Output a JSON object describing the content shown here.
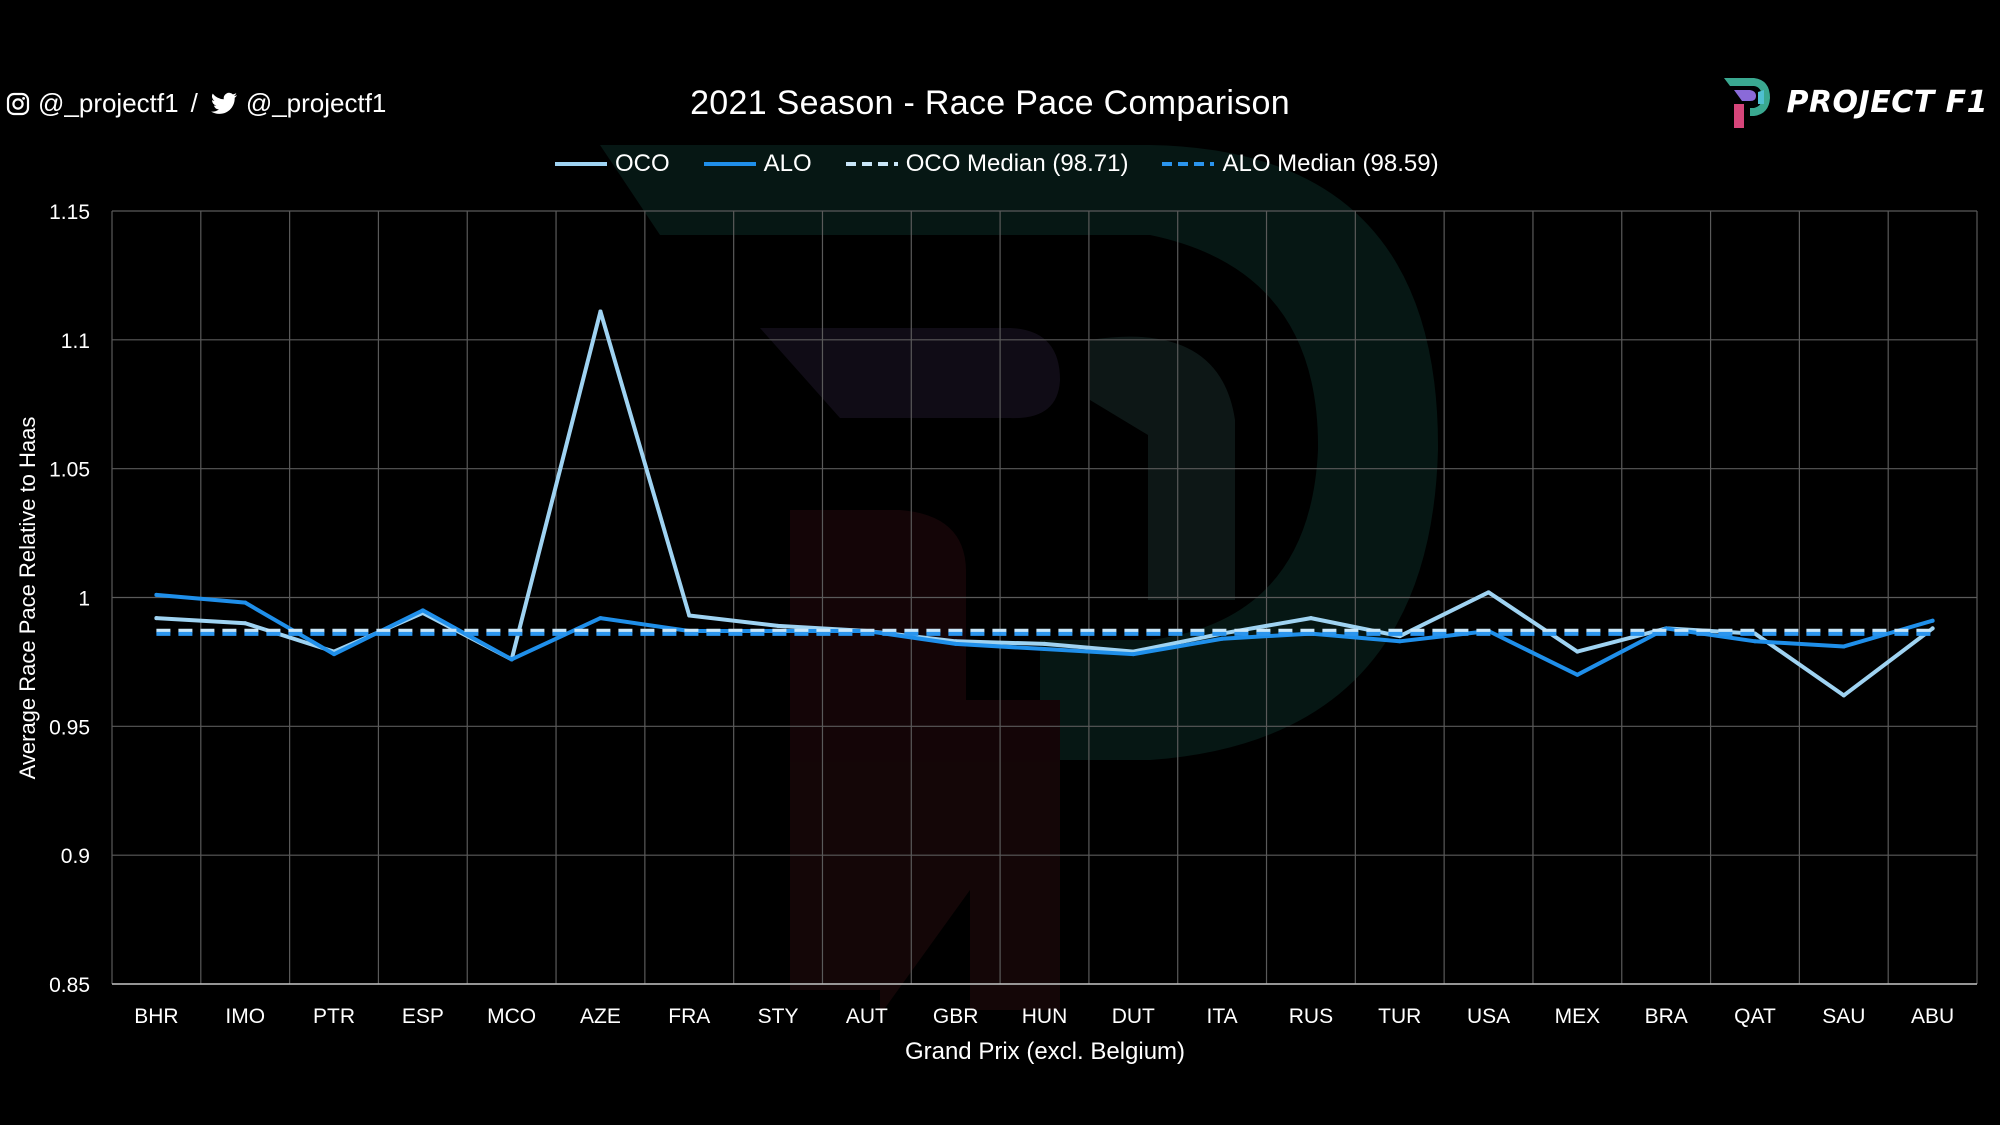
{
  "header": {
    "social": {
      "instagram_handle": "@_projectf1",
      "separator": "/",
      "twitter_handle": "@_projectf1",
      "instagram_icon": "instagram-icon",
      "twitter_icon": "twitter-icon"
    },
    "brand": {
      "name": "PROJECT F1",
      "logo_icon": "project-f1-logo"
    }
  },
  "chart_data": {
    "type": "line",
    "title": "2021 Season - Race Pace Comparison",
    "xlabel": "Grand Prix (excl. Belgium)",
    "ylabel": "Average Race Pace Relative to Haas",
    "ylim": [
      0.85,
      1.15
    ],
    "yticks": [
      "0.85",
      "0.9",
      "0.95",
      "1",
      "1.05",
      "1.1",
      "1.15"
    ],
    "grid": true,
    "legend_position": "top",
    "categories": [
      "BHR",
      "IMO",
      "PTR",
      "ESP",
      "MCO",
      "AZE",
      "FRA",
      "STY",
      "AUT",
      "GBR",
      "HUN",
      "DUT",
      "ITA",
      "RUS",
      "TUR",
      "USA",
      "MEX",
      "BRA",
      "QAT",
      "SAU",
      "ABU"
    ],
    "series": [
      {
        "name": "OCO",
        "style": "solid",
        "color": "#9fd3f2",
        "values": [
          0.992,
          0.99,
          0.979,
          0.994,
          0.976,
          1.111,
          0.993,
          0.989,
          0.987,
          0.983,
          0.982,
          0.979,
          0.986,
          0.992,
          0.985,
          1.002,
          0.979,
          0.988,
          0.986,
          0.962,
          0.988
        ]
      },
      {
        "name": "ALO",
        "style": "solid",
        "color": "#1f8fea",
        "values": [
          1.001,
          0.998,
          0.978,
          0.995,
          0.976,
          0.992,
          0.987,
          0.987,
          0.987,
          0.982,
          0.98,
          0.978,
          0.984,
          0.986,
          0.983,
          0.987,
          0.97,
          0.988,
          0.983,
          0.981,
          0.991
        ]
      },
      {
        "name": "OCO Median (98.71)",
        "style": "dashed",
        "color": "#c9e6f8",
        "constant": 0.9871
      },
      {
        "name": "ALO Median (98.59)",
        "style": "dashed",
        "color": "#2b95ee",
        "constant": 0.9859
      }
    ],
    "colors": {
      "background": "#000000",
      "grid": "#5a5a5a",
      "text": "#ffffff"
    }
  }
}
